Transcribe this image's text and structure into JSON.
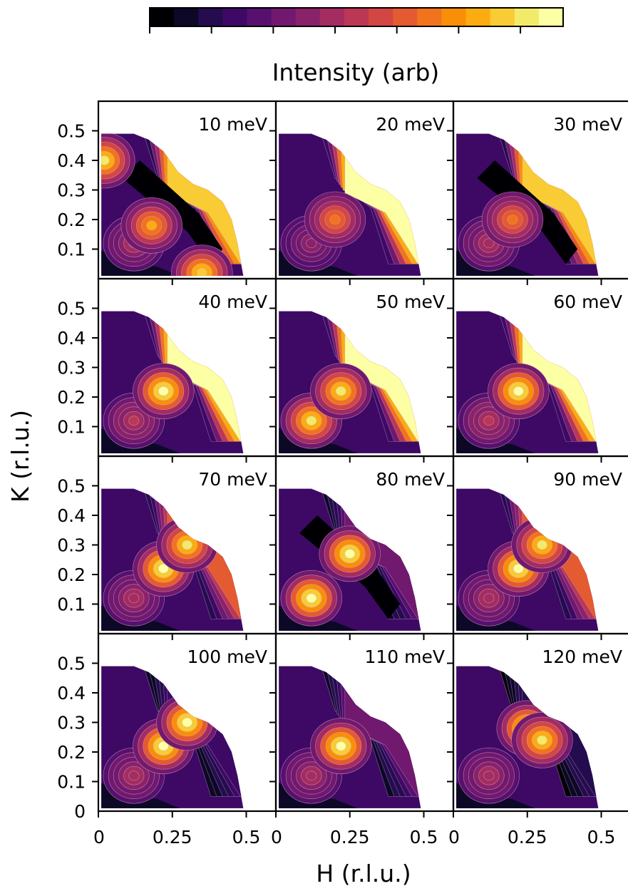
{
  "chart_data": {
    "type": "heatmap",
    "colorbar": {
      "label": "Intensity (arb)",
      "colormap": "inferno",
      "levels": 17,
      "colors": [
        "#000004",
        "#0c0826",
        "#240c4f",
        "#3d0965",
        "#57106e",
        "#71196e",
        "#8a226a",
        "#a32c61",
        "#bc3754",
        "#d24644",
        "#e45a31",
        "#f1731d",
        "#f98e09",
        "#fcac11",
        "#f9cb35",
        "#f2ea69",
        "#fcffa4"
      ]
    },
    "xlabel": "H (r.l.u.)",
    "ylabel": "K (r.l.u.)",
    "xlim": [
      0,
      0.6
    ],
    "ylim": [
      0,
      0.6
    ],
    "x_ticks": [
      0,
      0.25,
      0.5
    ],
    "x_tick_labels": [
      "0",
      "0.25",
      "0.5"
    ],
    "y_ticks": [
      0,
      0.1,
      0.2,
      0.3,
      0.4,
      0.5
    ],
    "y_tick_labels": [
      "0",
      "0.1",
      "0.2",
      "0.3",
      "0.4",
      "0.5"
    ],
    "grid": "4 rows x 3 columns, shared axes",
    "panels": [
      {
        "energy": "10 meV",
        "peaks": [
          {
            "h": 0.12,
            "k": 0.12,
            "v": 0.45
          },
          {
            "h": 0.18,
            "k": 0.18,
            "v": 0.8
          },
          {
            "h": 0.02,
            "k": 0.4,
            "v": 0.95
          },
          {
            "h": 0.35,
            "k": 0.02,
            "v": 0.9
          }
        ],
        "bright_region": 0.9,
        "dark_band": true
      },
      {
        "energy": "20 meV",
        "peaks": [
          {
            "h": 0.12,
            "k": 0.12,
            "v": 0.4
          },
          {
            "h": 0.2,
            "k": 0.2,
            "v": 0.7
          }
        ],
        "bright_region": 1.0,
        "dark_band": false
      },
      {
        "energy": "30 meV",
        "peaks": [
          {
            "h": 0.12,
            "k": 0.12,
            "v": 0.45
          },
          {
            "h": 0.2,
            "k": 0.2,
            "v": 0.7
          }
        ],
        "bright_region": 0.9,
        "dark_band": true
      },
      {
        "energy": "40 meV",
        "peaks": [
          {
            "h": 0.12,
            "k": 0.12,
            "v": 0.5
          },
          {
            "h": 0.22,
            "k": 0.22,
            "v": 1.0
          }
        ],
        "bright_region": 1.0,
        "dark_band": false
      },
      {
        "energy": "50 meV",
        "peaks": [
          {
            "h": 0.12,
            "k": 0.12,
            "v": 0.95
          },
          {
            "h": 0.22,
            "k": 0.22,
            "v": 0.95
          }
        ],
        "bright_region": 1.0,
        "dark_band": false
      },
      {
        "energy": "60 meV",
        "peaks": [
          {
            "h": 0.12,
            "k": 0.12,
            "v": 0.5
          },
          {
            "h": 0.22,
            "k": 0.22,
            "v": 1.0
          }
        ],
        "bright_region": 1.0,
        "dark_band": false
      },
      {
        "energy": "70 meV",
        "peaks": [
          {
            "h": 0.12,
            "k": 0.12,
            "v": 0.45
          },
          {
            "h": 0.22,
            "k": 0.22,
            "v": 1.0
          },
          {
            "h": 0.3,
            "k": 0.3,
            "v": 0.95
          }
        ],
        "bright_region": 0.6,
        "dark_band": false
      },
      {
        "energy": "80 meV",
        "peaks": [
          {
            "h": 0.12,
            "k": 0.12,
            "v": 1.0
          },
          {
            "h": 0.25,
            "k": 0.27,
            "v": 1.0
          }
        ],
        "bright_region": 0.3,
        "dark_band": true
      },
      {
        "energy": "90 meV",
        "peaks": [
          {
            "h": 0.12,
            "k": 0.12,
            "v": 0.45
          },
          {
            "h": 0.22,
            "k": 0.22,
            "v": 1.0
          },
          {
            "h": 0.3,
            "k": 0.3,
            "v": 0.95
          }
        ],
        "bright_region": 0.6,
        "dark_band": false
      },
      {
        "energy": "100 meV",
        "peaks": [
          {
            "h": 0.12,
            "k": 0.12,
            "v": 0.45
          },
          {
            "h": 0.22,
            "k": 0.22,
            "v": 1.0
          },
          {
            "h": 0.3,
            "k": 0.3,
            "v": 1.0
          }
        ],
        "bright_region": 0.2,
        "dark_band": false
      },
      {
        "energy": "110 meV",
        "peaks": [
          {
            "h": 0.12,
            "k": 0.12,
            "v": 0.45
          },
          {
            "h": 0.22,
            "k": 0.22,
            "v": 1.0
          }
        ],
        "bright_region": 0.3,
        "dark_band": false
      },
      {
        "energy": "120 meV",
        "peaks": [
          {
            "h": 0.12,
            "k": 0.12,
            "v": 0.45
          },
          {
            "h": 0.25,
            "k": 0.28,
            "v": 1.0
          },
          {
            "h": 0.3,
            "k": 0.24,
            "v": 0.95
          }
        ],
        "bright_region": 0.15,
        "dark_band": false
      }
    ]
  }
}
